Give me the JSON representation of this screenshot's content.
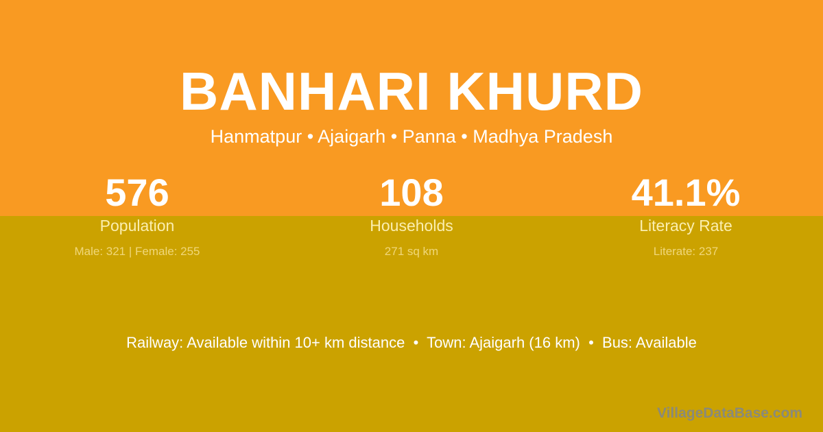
{
  "colors": {
    "top_bg": "#f99a22",
    "bottom_bg": "#cba200"
  },
  "title": "BANHARI KHURD",
  "location": "Hanmatpur • Ajaigarh • Panna • Madhya Pradesh",
  "stats": [
    {
      "value": "576",
      "label": "Population",
      "detail": "Male: 321 | Female: 255"
    },
    {
      "value": "108",
      "label": "Households",
      "detail": "271 sq km"
    },
    {
      "value": "41.1%",
      "label": "Literacy Rate",
      "detail": "Literate: 237"
    }
  ],
  "facilities": "Railway: Available within 10+ km distance  •  Town: Ajaigarh (16 km)  •  Bus: Available",
  "watermark": "VillageDataBase.com"
}
